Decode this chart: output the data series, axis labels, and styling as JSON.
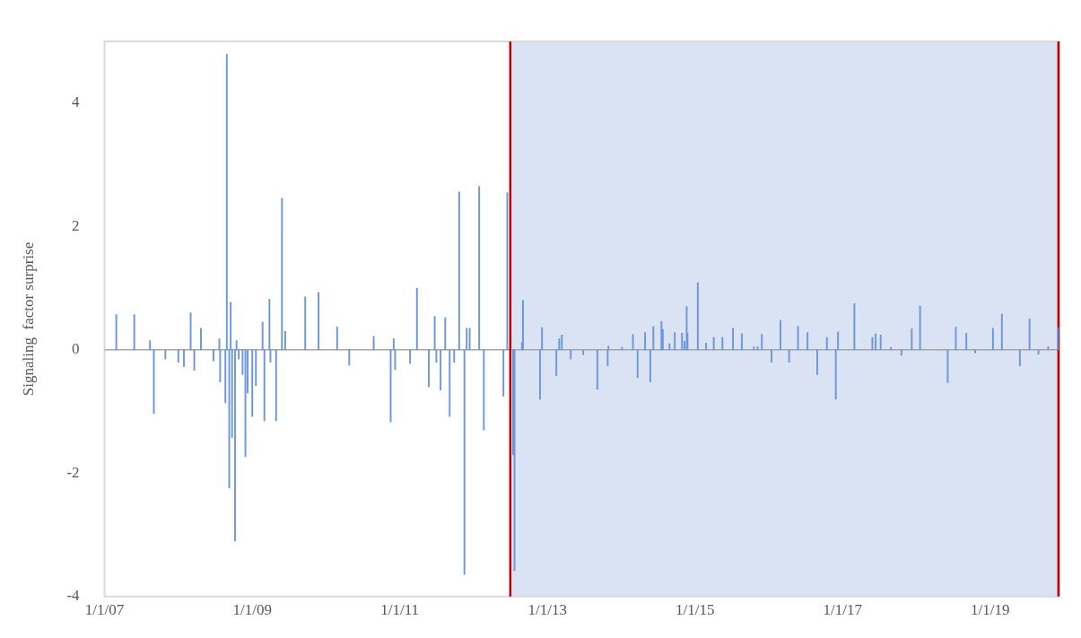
{
  "chart_data": {
    "type": "bar",
    "ylabel": "Signaling  factor surprise",
    "x": [
      "2007-02-28",
      "2007-05-28",
      "2007-08-14",
      "2007-09-02",
      "2007-10-29",
      "2008-01-01",
      "2008-01-29",
      "2008-03-02",
      "2008-03-20",
      "2008-04-22",
      "2008-06-23",
      "2008-07-22",
      "2008-07-26",
      "2008-08-21",
      "2008-08-28",
      "2008-09-09",
      "2008-09-16",
      "2008-09-23",
      "2008-10-08",
      "2008-10-15",
      "2008-10-26",
      "2008-11-14",
      "2008-11-28",
      "2008-12-09",
      "2009-01-01",
      "2009-01-19",
      "2009-02-21",
      "2009-03-02",
      "2009-03-27",
      "2009-04-01",
      "2009-04-29",
      "2009-05-28",
      "2009-06-13",
      "2009-09-20",
      "2009-11-25",
      "2010-02-25",
      "2010-04-26",
      "2010-08-25",
      "2010-11-17",
      "2010-12-02",
      "2010-12-09",
      "2011-02-21",
      "2011-03-27",
      "2011-05-25",
      "2011-06-23",
      "2011-07-01",
      "2011-07-22",
      "2011-08-14",
      "2011-09-05",
      "2011-09-27",
      "2011-10-22",
      "2011-11-17",
      "2011-11-28",
      "2011-12-13",
      "2012-01-29",
      "2012-02-21",
      "2012-05-28",
      "2012-06-16",
      "2012-07-15",
      "2012-07-22",
      "2012-08-28",
      "2012-09-02",
      "2012-11-25",
      "2012-12-05",
      "2013-02-14",
      "2013-02-28",
      "2013-03-13",
      "2013-04-26",
      "2013-06-27",
      "2013-09-05",
      "2013-10-26",
      "2013-10-30",
      "2014-01-05",
      "2014-02-28",
      "2014-03-23",
      "2014-04-29",
      "2014-05-25",
      "2014-06-09",
      "2014-07-19",
      "2014-07-26",
      "2014-08-28",
      "2014-09-23",
      "2014-10-29",
      "2014-11-10",
      "2014-11-21",
      "2014-11-25",
      "2015-01-15",
      "2015-02-25",
      "2015-04-04",
      "2015-05-17",
      "2015-07-08",
      "2015-08-21",
      "2015-10-19",
      "2015-11-07",
      "2015-11-28",
      "2016-01-15",
      "2016-02-28",
      "2016-04-11",
      "2016-05-25",
      "2016-07-11",
      "2016-08-28",
      "2016-10-15",
      "2016-11-28",
      "2016-12-09",
      "2017-02-28",
      "2017-05-28",
      "2017-06-13",
      "2017-07-08",
      "2017-08-28",
      "2017-10-19",
      "2017-12-09",
      "2018-01-19",
      "2018-06-05",
      "2018-07-15",
      "2018-09-05",
      "2018-10-19",
      "2019-01-15",
      "2019-02-28",
      "2019-05-28",
      "2019-07-15",
      "2019-08-28",
      "2019-10-15",
      "2019-12-02"
    ],
    "values": [
      0.57,
      0.57,
      0.15,
      -1.03,
      -0.15,
      -0.2,
      -0.27,
      0.6,
      -0.33,
      0.35,
      -0.18,
      0.18,
      -0.52,
      -0.86,
      4.79,
      -2.24,
      0.77,
      -1.42,
      -3.1,
      0.15,
      -0.15,
      -0.4,
      -1.73,
      -0.7,
      -1.08,
      -0.58,
      0.45,
      -1.15,
      0.82,
      -0.2,
      -1.15,
      2.46,
      0.3,
      0.86,
      0.93,
      0.37,
      -0.25,
      0.22,
      -1.17,
      0.18,
      -0.32,
      -0.22,
      1.0,
      -0.6,
      0.54,
      -0.2,
      -0.65,
      0.52,
      -1.08,
      -0.2,
      2.56,
      -3.64,
      0.35,
      0.35,
      2.65,
      -1.3,
      -0.75,
      2.55,
      -1.7,
      -3.58,
      0.12,
      0.8,
      -0.8,
      0.36,
      -0.42,
      0.18,
      0.24,
      -0.15,
      -0.08,
      -0.64,
      -0.26,
      0.06,
      0.04,
      0.25,
      -0.45,
      0.28,
      -0.52,
      0.38,
      0.46,
      0.33,
      0.1,
      0.28,
      0.27,
      0.14,
      0.7,
      0.27,
      1.09,
      0.11,
      0.2,
      0.2,
      0.35,
      0.26,
      0.05,
      0.05,
      0.25,
      -0.2,
      0.48,
      -0.2,
      0.38,
      0.28,
      -0.4,
      0.2,
      -0.8,
      0.29,
      0.75,
      0.2,
      0.26,
      0.24,
      0.04,
      -0.09,
      0.34,
      0.71,
      -0.53,
      0.37,
      0.27,
      -0.05,
      0.35,
      0.58,
      -0.26,
      0.5,
      -0.07,
      0.05,
      0.36
    ],
    "color": "#6f97dc",
    "xlim": [
      "2007-01-01",
      "2019-12-10"
    ],
    "xticks": [
      {
        "value": "2007-01-01",
        "label": "1/1/07"
      },
      {
        "value": "2009-01-01",
        "label": "1/1/09"
      },
      {
        "value": "2011-01-01",
        "label": "1/1/11"
      },
      {
        "value": "2013-01-01",
        "label": "1/1/13"
      },
      {
        "value": "2015-01-01",
        "label": "1/1/15"
      },
      {
        "value": "2017-01-01",
        "label": "1/1/17"
      },
      {
        "value": "2019-01-01",
        "label": "1/1/19"
      }
    ],
    "ylim": [
      -4,
      5
    ],
    "yticks": [
      -4,
      -2,
      0,
      2,
      4
    ],
    "bands": [
      {
        "axis": "x",
        "from": "2012-07-01",
        "to": "2019-12-05",
        "color": "#dae3f3"
      }
    ],
    "ref_lines": [
      {
        "axis": "y",
        "value": 0,
        "color": "#a6a6a6"
      },
      {
        "axis": "x",
        "value": "2012-07-01",
        "color": "#c00000"
      },
      {
        "axis": "x",
        "value": "2019-12-05",
        "color": "#c00000"
      }
    ],
    "grid": false,
    "legend": false
  }
}
